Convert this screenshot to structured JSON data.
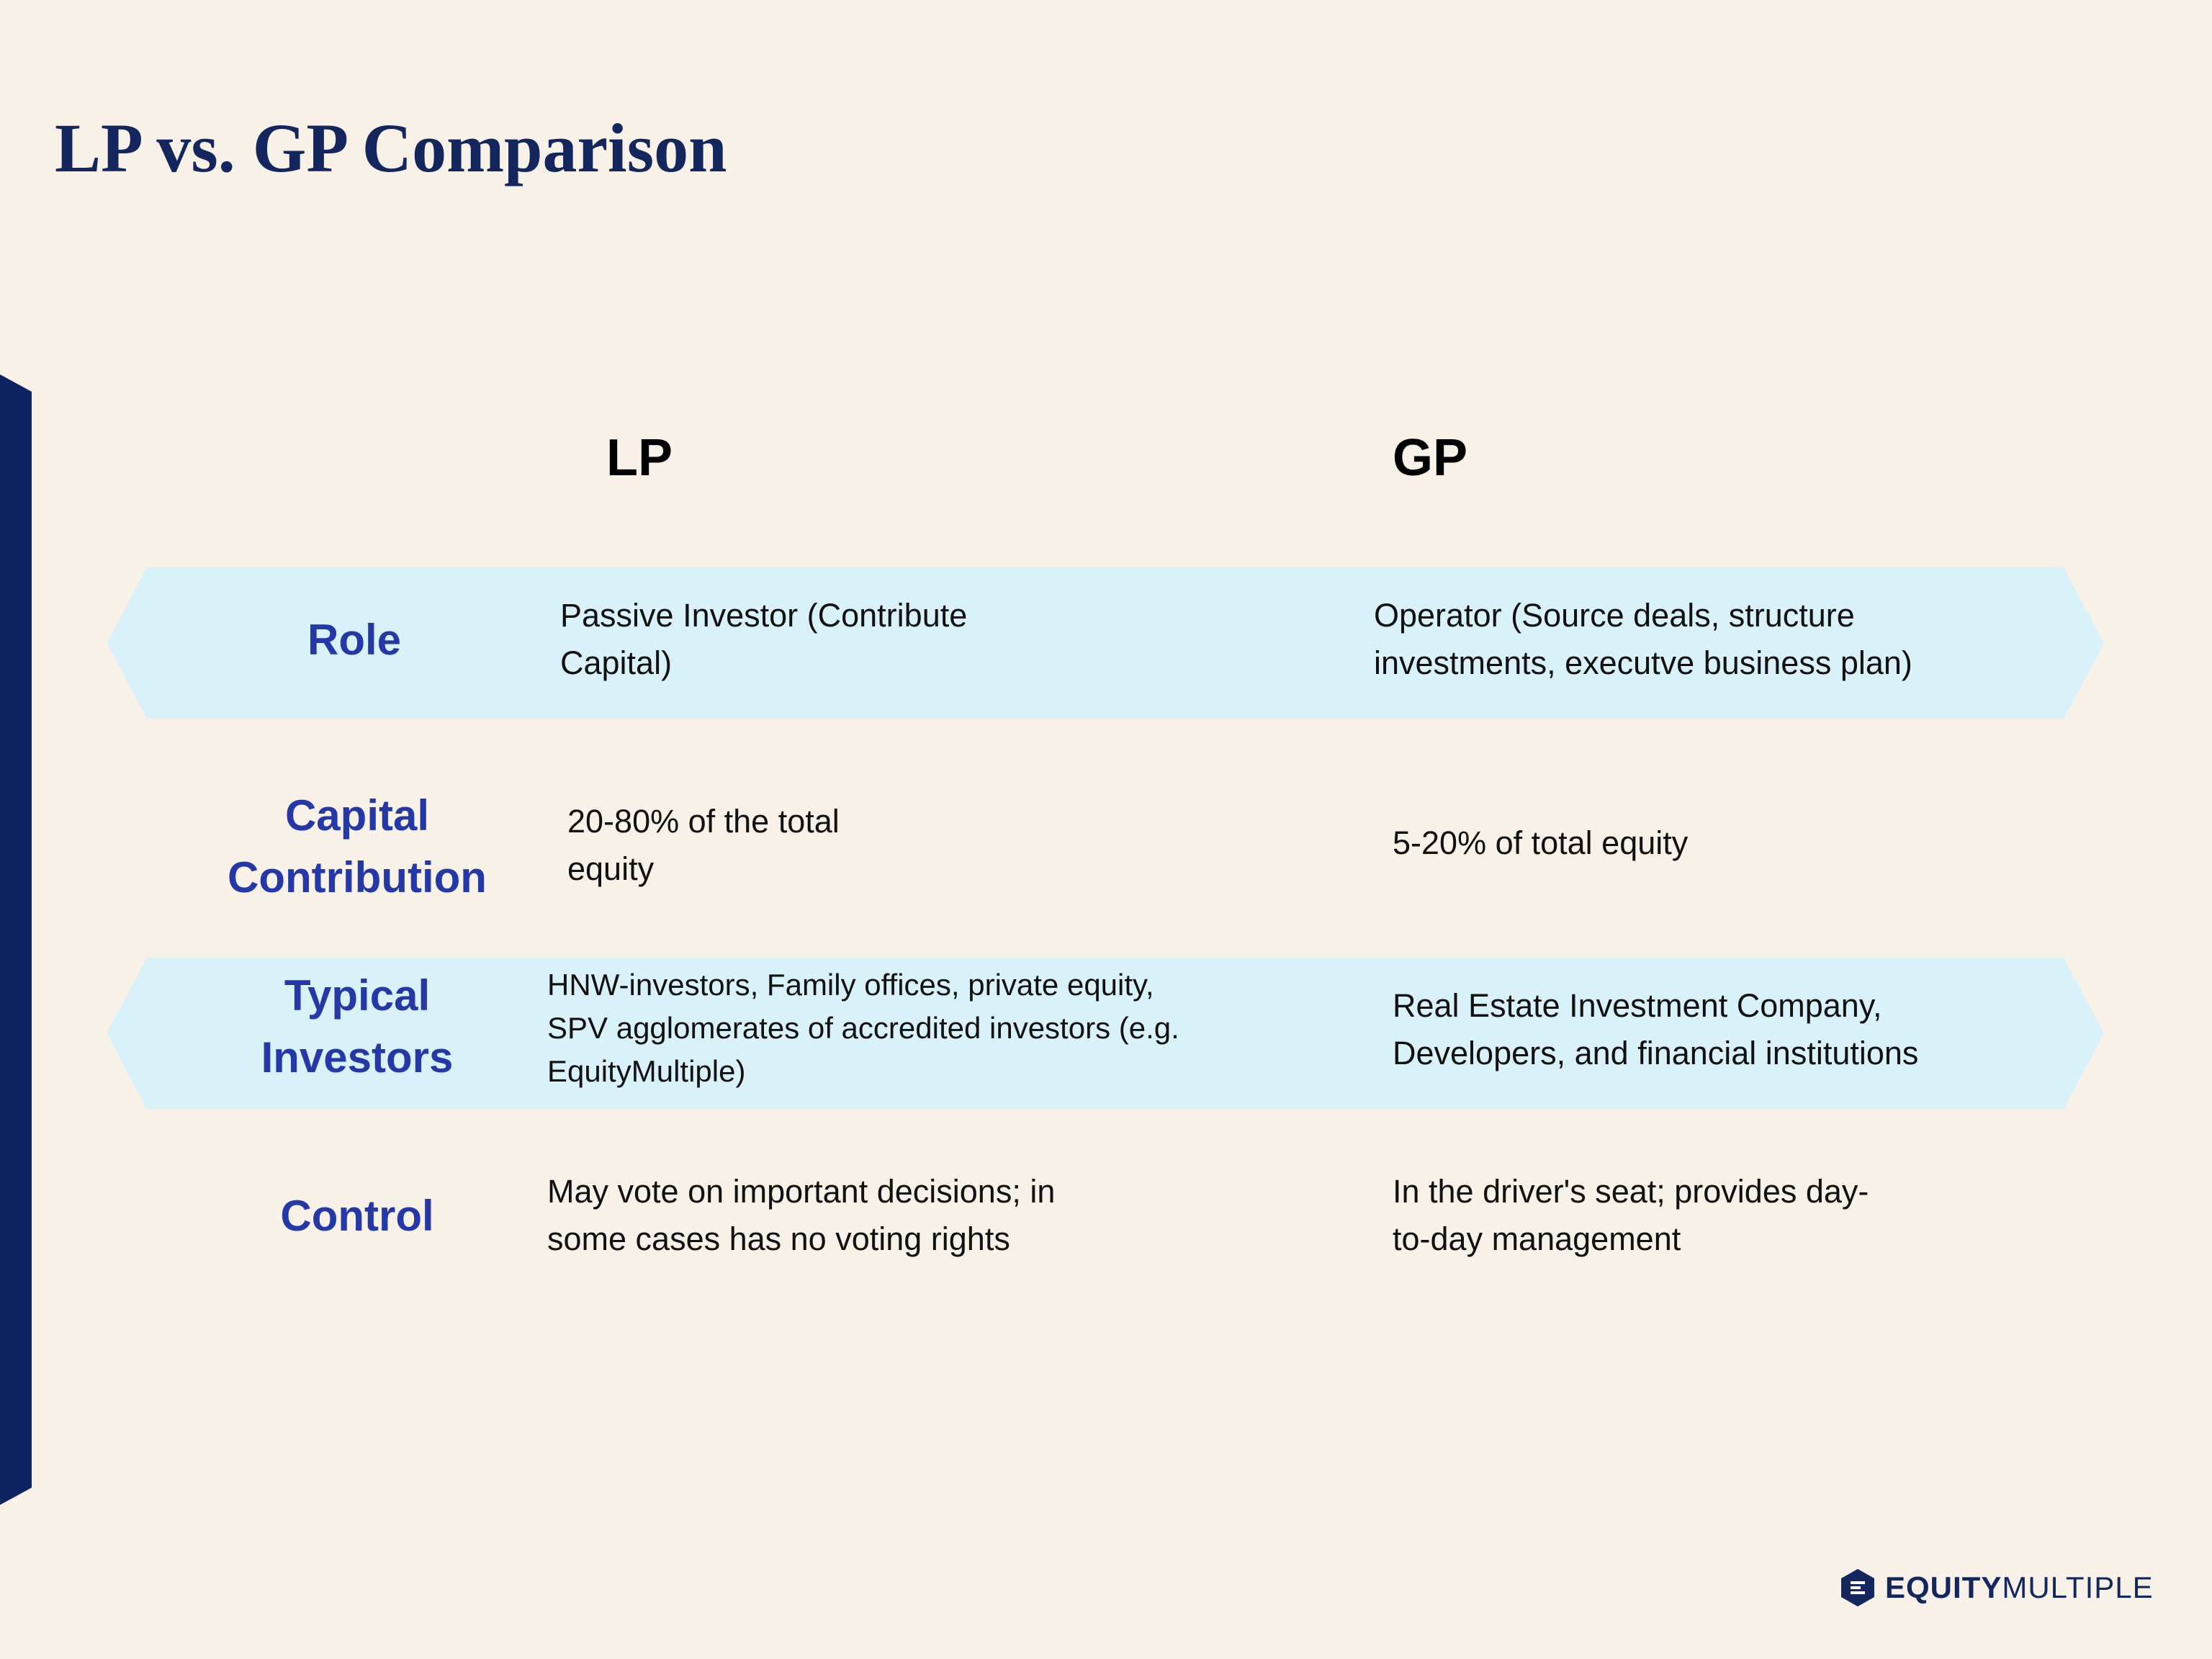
{
  "title": "LP vs. GP Comparison",
  "columns": {
    "lp": "LP",
    "gp": "GP"
  },
  "rows": [
    {
      "label_lines": [
        "Role"
      ],
      "lp_lines": [
        "Passive Investor (Contribute",
        "Capital)"
      ],
      "gp_lines": [
        "Operator (Source deals, structure",
        "investments, executve business plan)"
      ]
    },
    {
      "label_lines": [
        "Capital",
        "Contribution"
      ],
      "lp_lines": [
        "20-80% of the total",
        "equity"
      ],
      "gp_lines": [
        "5-20% of total equity"
      ]
    },
    {
      "label_lines": [
        "Typical",
        "Investors"
      ],
      "lp_lines": [
        "HNW-investors, Family offices, private equity,",
        "SPV agglomerates of accredited investors (e.g.",
        "EquityMultiple)"
      ],
      "gp_lines": [
        "Real Estate Investment Company,",
        "Developers, and financial institutions"
      ]
    },
    {
      "label_lines": [
        "Control"
      ],
      "lp_lines": [
        "May vote on important decisions; in",
        "some cases has no voting rights"
      ],
      "gp_lines": [
        "In the driver's seat; provides day-",
        "to-day management"
      ]
    }
  ],
  "logo": {
    "bold": "EQUITY",
    "light": "MULTIPLE",
    "icon": "equitymultiple-hexagon-icon"
  },
  "colors": {
    "background": "#f7f1e8",
    "title": "#13275e",
    "label": "#2438a8",
    "band": "#d9f2fa",
    "accent": "#0e2461"
  }
}
